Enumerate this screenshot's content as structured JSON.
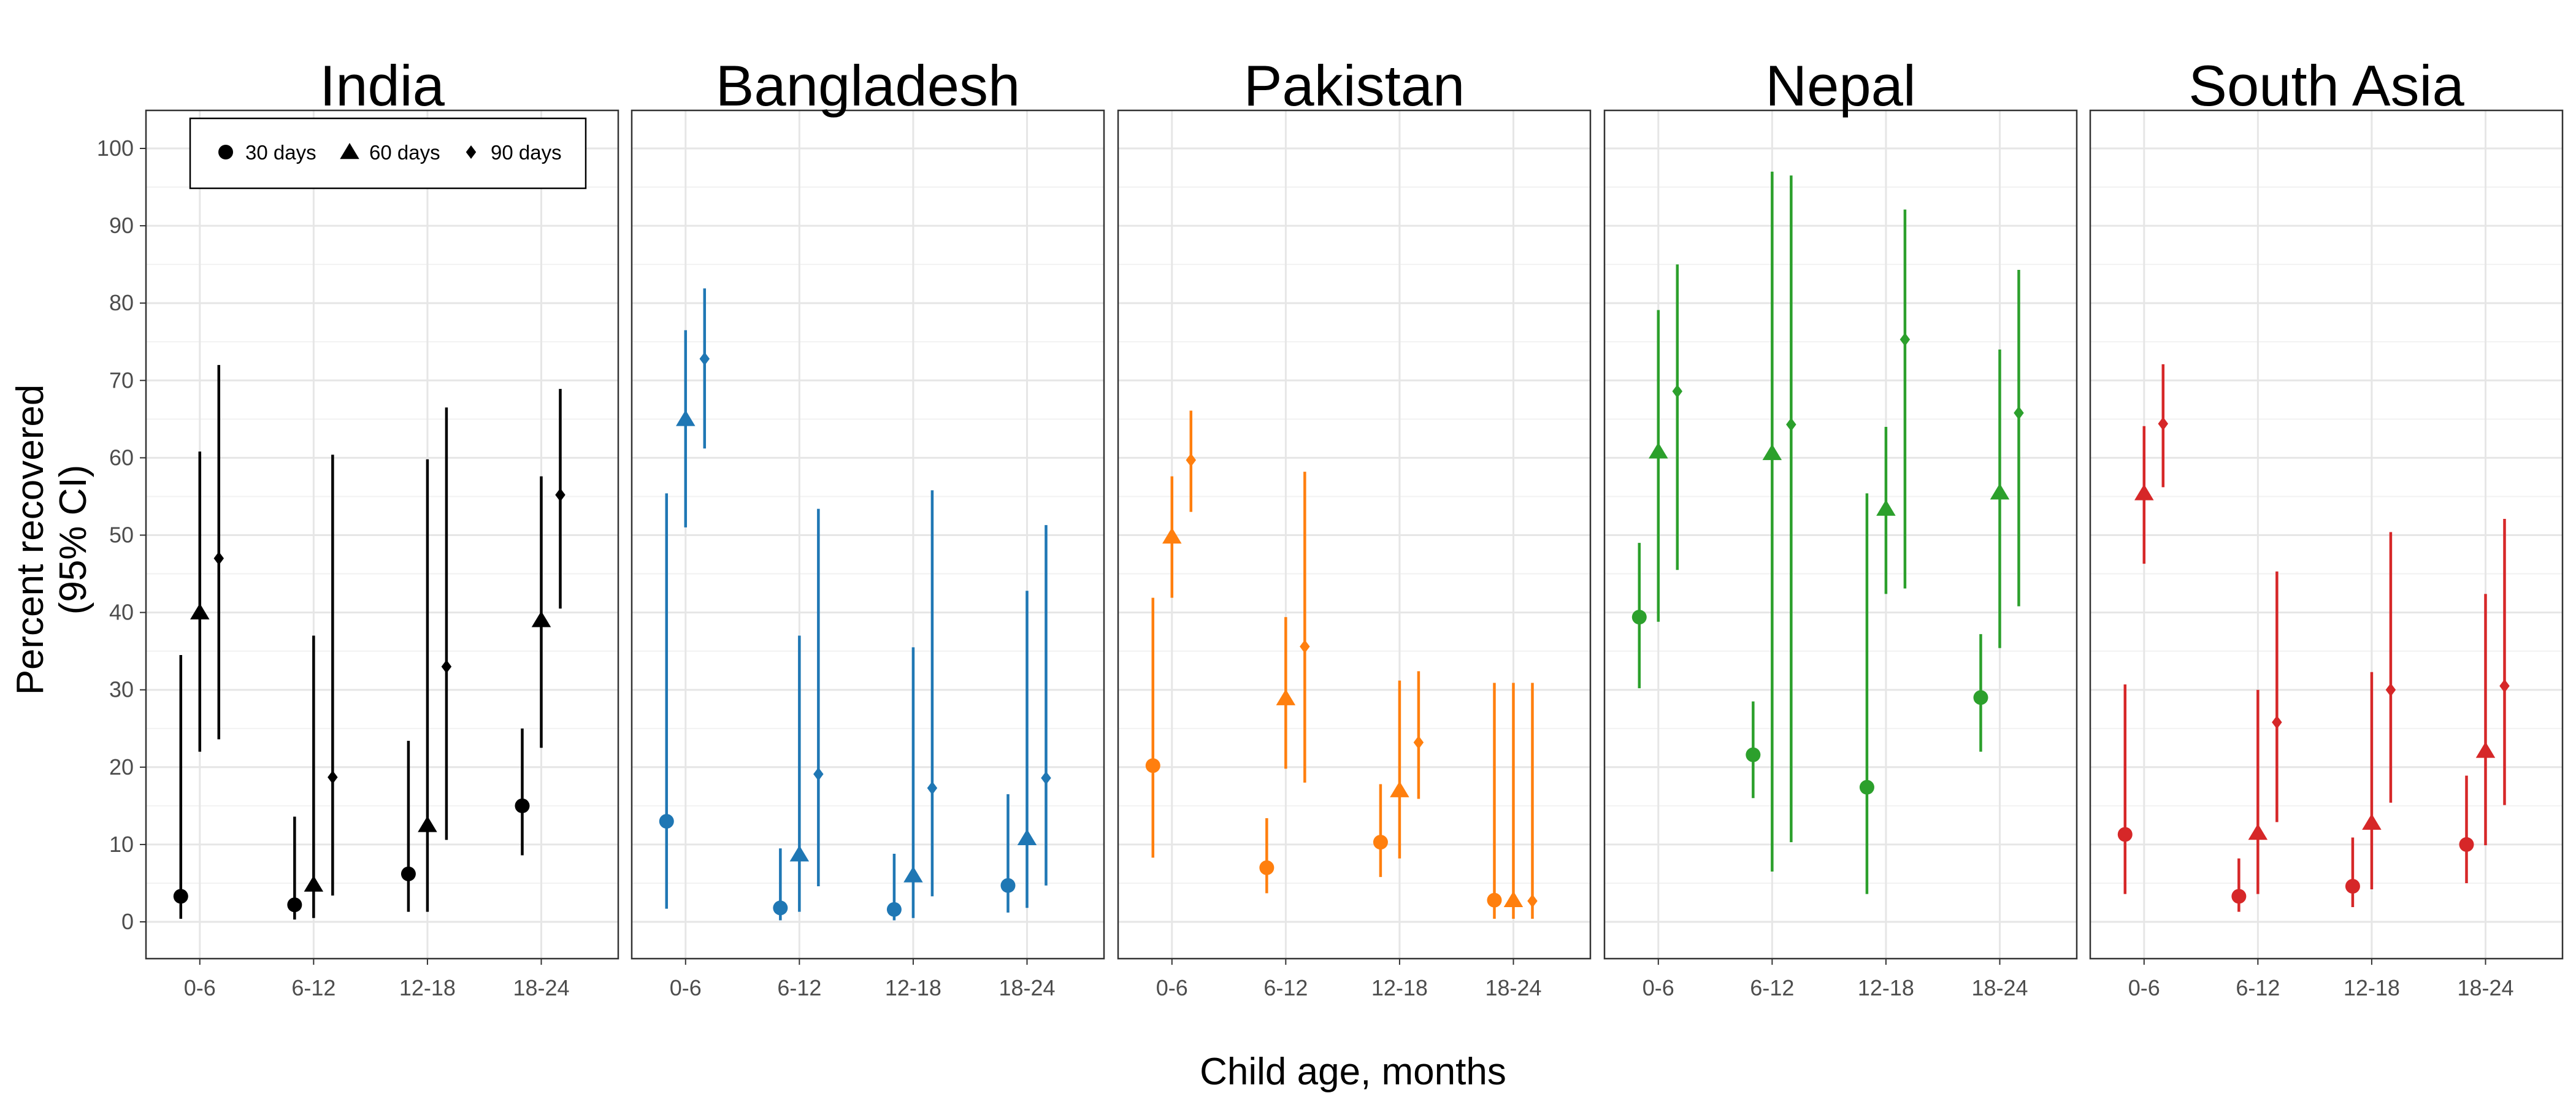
{
  "chart_data": {
    "type": "scatter",
    "subtype": "point-range faceted",
    "ylabel_line1": "Percent recovered",
    "ylabel_line2": "(95% CI)",
    "xlabel": "Child age, months",
    "ylim": [
      0,
      100
    ],
    "y_ticks": [
      "0",
      "10",
      "20",
      "30",
      "40",
      "50",
      "60",
      "70",
      "80",
      "90",
      "100"
    ],
    "categories": [
      "0-6",
      "6-12",
      "12-18",
      "18-24"
    ],
    "grid": true,
    "legend": {
      "placement": "top-left",
      "entries": [
        {
          "label": "30 days",
          "shape": "circle"
        },
        {
          "label": "60 days",
          "shape": "triangle"
        },
        {
          "label": "90 days",
          "shape": "diamond"
        }
      ]
    },
    "panels": [
      {
        "title": "India",
        "color": "#000000",
        "series": [
          {
            "values": [
              3.3,
              2.2,
              6.2,
              15.0
            ],
            "lower": [
              0.4,
              0.3,
              1.3,
              8.6
            ],
            "upper": [
              34.5,
              13.6,
              23.4,
              25.0
            ]
          },
          {
            "values": [
              40.0,
              4.8,
              12.5,
              39.0
            ],
            "lower": [
              22.0,
              0.5,
              1.3,
              22.5
            ],
            "upper": [
              60.8,
              37.0,
              59.8,
              57.6
            ]
          },
          {
            "values": [
              47.0,
              18.7,
              33.0,
              55.2
            ],
            "lower": [
              23.6,
              3.4,
              10.6,
              40.5
            ],
            "upper": [
              72.0,
              60.4,
              66.5,
              68.9
            ]
          }
        ]
      },
      {
        "title": "Bangladesh",
        "color": "#1f77b4",
        "series": [
          {
            "values": [
              13.0,
              1.8,
              1.6,
              4.7
            ],
            "lower": [
              1.7,
              0.2,
              0.2,
              1.2
            ],
            "upper": [
              55.4,
              9.5,
              8.8,
              16.5
            ]
          },
          {
            "values": [
              65.0,
              8.7,
              6.0,
              10.8
            ],
            "lower": [
              51.0,
              1.3,
              0.5,
              1.8
            ],
            "upper": [
              76.5,
              37.0,
              35.5,
              42.8
            ]
          },
          {
            "values": [
              72.8,
              19.1,
              17.3,
              18.6
            ],
            "lower": [
              61.2,
              4.6,
              3.3,
              4.7
            ],
            "upper": [
              81.9,
              53.4,
              55.8,
              51.3
            ]
          }
        ]
      },
      {
        "title": "Pakistan",
        "color": "#ff7f0e",
        "series": [
          {
            "values": [
              20.2,
              7.0,
              10.3,
              2.8
            ],
            "lower": [
              8.3,
              3.7,
              5.8,
              0.4
            ],
            "upper": [
              41.9,
              13.4,
              17.8,
              30.9
            ]
          },
          {
            "values": [
              49.8,
              28.9,
              17.0,
              2.8
            ],
            "lower": [
              41.9,
              19.8,
              8.2,
              0.4
            ],
            "upper": [
              57.6,
              39.4,
              31.2,
              30.9
            ]
          },
          {
            "values": [
              59.7,
              35.6,
              23.2,
              2.7
            ],
            "lower": [
              53.0,
              18.0,
              15.9,
              0.4
            ],
            "upper": [
              66.1,
              58.2,
              32.4,
              30.9
            ]
          }
        ]
      },
      {
        "title": "Nepal",
        "color": "#2ca02c",
        "series": [
          {
            "values": [
              39.4,
              21.6,
              17.4,
              29.0
            ],
            "lower": [
              30.2,
              16.0,
              3.6,
              22.0
            ],
            "upper": [
              49.0,
              28.5,
              55.4,
              37.2
            ]
          },
          {
            "values": [
              60.8,
              60.6,
              53.4,
              55.5
            ],
            "lower": [
              38.8,
              6.5,
              42.4,
              35.4
            ],
            "upper": [
              79.1,
              97.0,
              64.0,
              74.0
            ]
          },
          {
            "values": [
              68.6,
              64.3,
              75.3,
              65.8
            ],
            "lower": [
              45.5,
              10.3,
              43.1,
              40.8
            ],
            "upper": [
              85.0,
              96.5,
              92.1,
              84.3
            ]
          }
        ]
      },
      {
        "title": "South Asia",
        "color": "#d62728",
        "series": [
          {
            "values": [
              11.3,
              3.3,
              4.6,
              10.0
            ],
            "lower": [
              3.6,
              1.3,
              1.9,
              5.0
            ],
            "upper": [
              30.7,
              8.2,
              10.9,
              18.9
            ]
          },
          {
            "values": [
              55.4,
              11.5,
              12.8,
              22.1
            ],
            "lower": [
              46.3,
              3.6,
              4.2,
              9.9
            ],
            "upper": [
              64.1,
              30.0,
              32.3,
              42.4
            ]
          },
          {
            "values": [
              64.4,
              25.8,
              30.0,
              30.5
            ],
            "lower": [
              56.2,
              12.9,
              15.4,
              15.1
            ],
            "upper": [
              72.1,
              45.3,
              50.4,
              52.1
            ]
          }
        ]
      }
    ]
  }
}
